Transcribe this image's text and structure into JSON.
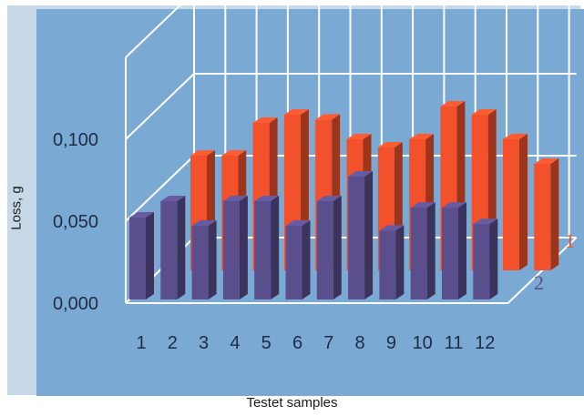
{
  "chart_data": {
    "type": "bar",
    "style": "3d-clustered",
    "categories": [
      "1",
      "2",
      "3",
      "4",
      "5",
      "6",
      "7",
      "8",
      "9",
      "10",
      "11",
      "12"
    ],
    "series": [
      {
        "name": "1",
        "color": "#f2512b",
        "values": [
          0.07,
          0.07,
          0.09,
          0.095,
          0.092,
          0.08,
          0.075,
          0.08,
          0.1,
          0.095,
          0.08,
          0.065
        ]
      },
      {
        "name": "2",
        "color": "#5a4f8c",
        "values": [
          0.05,
          0.06,
          0.045,
          0.06,
          0.06,
          0.045,
          0.06,
          0.075,
          0.042,
          0.056,
          0.056,
          0.046
        ]
      }
    ],
    "y_ticks": [
      "0,000",
      "0,050",
      "0,100"
    ],
    "ylim": [
      0,
      0.12
    ],
    "xlabel": "Testet samples",
    "ylabel": "Loss, g",
    "grid": true,
    "legend": "series-labels-right"
  }
}
